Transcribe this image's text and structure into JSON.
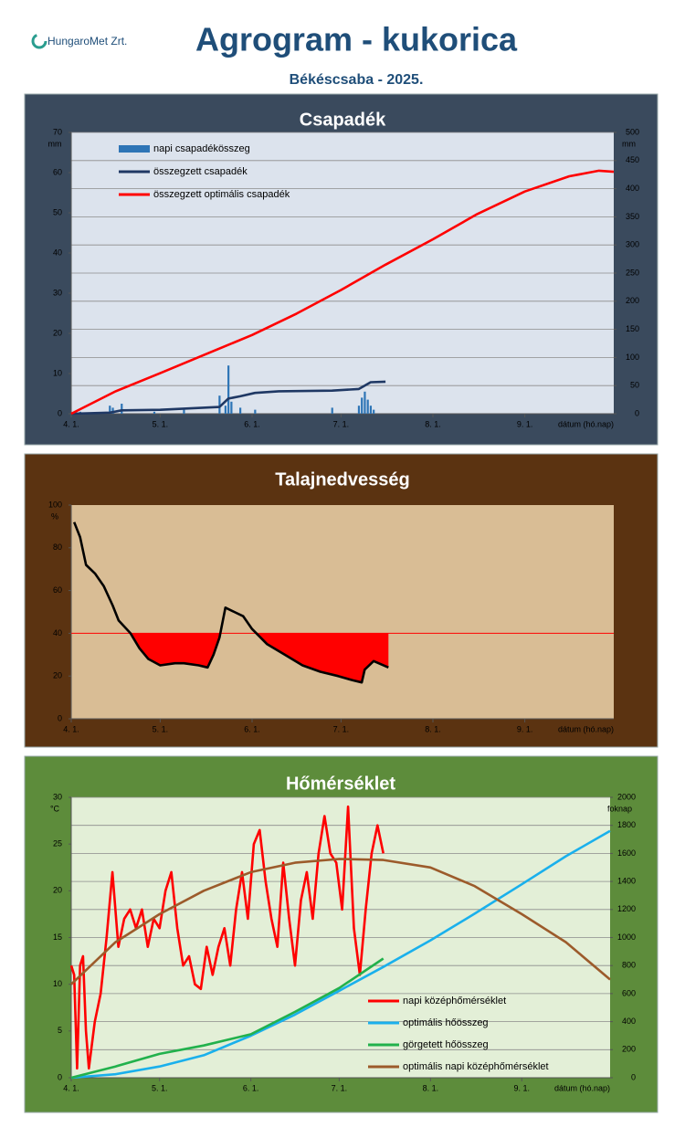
{
  "logo": "HungaroMet Zrt.",
  "title": "Agrogram - kukorica",
  "subtitle": "Békéscsaba - 2025.",
  "chart_data": [
    {
      "type": "combo",
      "title": "Csapadék",
      "xlabel": "dátum (hó.nap)",
      "ylabel": "mm",
      "y2label": "mm",
      "xlim": [
        0,
        183
      ],
      "xticks": [
        {
          "value": 0,
          "label": "4. 1."
        },
        {
          "value": 30,
          "label": "5. 1."
        },
        {
          "value": 61,
          "label": "6. 1."
        },
        {
          "value": 91,
          "label": "7. 1."
        },
        {
          "value": 122,
          "label": "8. 1."
        },
        {
          "value": 153,
          "label": "9. 1."
        }
      ],
      "ylim": [
        0,
        70
      ],
      "yticks": [
        0,
        10,
        20,
        30,
        40,
        50,
        60,
        70
      ],
      "y2lim": [
        0,
        500
      ],
      "y2ticks": [
        0,
        50,
        100,
        150,
        200,
        250,
        300,
        350,
        400,
        450,
        500
      ],
      "grid": "y2",
      "legend": "upper left",
      "background": "#dce3ed",
      "panel_color": "#3a4a5d",
      "series": [
        {
          "name": "napi csapadékösszeg",
          "type": "bar",
          "color": "#2e75b6",
          "x": [
            3,
            13,
            14,
            17,
            28,
            38,
            50,
            52,
            53,
            54,
            57,
            62,
            88,
            97,
            98,
            99,
            100,
            101,
            102
          ],
          "values": [
            0.5,
            2,
            1.5,
            2.5,
            0.5,
            1,
            4.5,
            2,
            12,
            3,
            1.5,
            1,
            1.5,
            2,
            4,
            5.5,
            3.5,
            2,
            1
          ]
        },
        {
          "name": "összegzett csapadék",
          "type": "line",
          "axis": "y2",
          "color": "#1f3864",
          "x": [
            0,
            13,
            17,
            30,
            50,
            53,
            57,
            62,
            70,
            88,
            97,
            99,
            101,
            106
          ],
          "values": [
            0,
            2,
            6,
            7,
            12,
            27,
            31,
            37,
            40,
            41,
            44,
            50,
            56,
            57
          ]
        },
        {
          "name": "összegzett optimális csapadék",
          "type": "line",
          "axis": "y2",
          "color": "#ff0000",
          "x": [
            0,
            15,
            30,
            45,
            61,
            76,
            91,
            106,
            122,
            137,
            153,
            168,
            178,
            183
          ],
          "values": [
            0,
            40,
            72,
            105,
            140,
            178,
            220,
            265,
            310,
            355,
            395,
            422,
            432,
            430
          ]
        }
      ]
    },
    {
      "type": "line",
      "title": "Talajnedvesség",
      "xlabel": "dátum (hó.nap)",
      "ylabel": "%",
      "xlim": [
        0,
        183
      ],
      "xticks": [
        {
          "value": 0,
          "label": "4. 1."
        },
        {
          "value": 30,
          "label": "5. 1."
        },
        {
          "value": 61,
          "label": "6. 1."
        },
        {
          "value": 91,
          "label": "7. 1."
        },
        {
          "value": 122,
          "label": "8. 1."
        },
        {
          "value": 153,
          "label": "9. 1."
        }
      ],
      "ylim": [
        0,
        100
      ],
      "yticks": [
        0,
        20,
        40,
        60,
        80,
        100
      ],
      "grid": false,
      "background": "#d9bd95",
      "panel_color": "#5b3311",
      "threshold": 40,
      "threshold_color": "#ff0000",
      "series": [
        {
          "name": null,
          "color": "#000000",
          "fill_below_threshold": "#ff0000",
          "x": [
            1,
            3,
            5,
            8,
            11,
            14,
            16,
            20,
            23,
            26,
            30,
            35,
            38,
            43,
            46,
            48,
            50,
            52,
            55,
            58,
            61,
            66,
            72,
            78,
            84,
            90,
            95,
            98,
            99,
            102,
            107
          ],
          "values": [
            92,
            85,
            72,
            68,
            62,
            53,
            46,
            40,
            33,
            28,
            25,
            26,
            26,
            25,
            24,
            30,
            38,
            52,
            50,
            48,
            42,
            35,
            30,
            25,
            22,
            20,
            18,
            17,
            23,
            27,
            24
          ]
        }
      ]
    },
    {
      "type": "line",
      "title": "Hőmérséklet",
      "xlabel": "dátum (hó.nap)",
      "ylabel": "°C",
      "y2label": "foknap",
      "xlim": [
        0,
        183
      ],
      "xticks": [
        {
          "value": 0,
          "label": "4. 1."
        },
        {
          "value": 30,
          "label": "5. 1."
        },
        {
          "value": 61,
          "label": "6. 1."
        },
        {
          "value": 91,
          "label": "7. 1."
        },
        {
          "value": 122,
          "label": "8. 1."
        },
        {
          "value": 153,
          "label": "9. 1."
        }
      ],
      "ylim": [
        0,
        30
      ],
      "yticks": [
        0,
        5,
        10,
        15,
        20,
        25,
        30
      ],
      "y2lim": [
        0,
        2000
      ],
      "y2ticks": [
        0,
        200,
        400,
        600,
        800,
        1000,
        1200,
        1400,
        1600,
        1800,
        2000
      ],
      "grid": "y2",
      "legend": "lower right",
      "background": "#e3efd7",
      "panel_color": "#5d8c3b",
      "series": [
        {
          "name": "napi középhőmérséklet",
          "color": "#ff0000",
          "x": [
            0,
            1,
            2,
            3,
            4,
            5,
            6,
            8,
            10,
            12,
            14,
            16,
            18,
            20,
            22,
            24,
            26,
            28,
            30,
            32,
            34,
            36,
            38,
            40,
            42,
            44,
            46,
            48,
            50,
            52,
            54,
            56,
            58,
            60,
            62,
            64,
            66,
            68,
            70,
            72,
            74,
            76,
            78,
            80,
            82,
            84,
            86,
            88,
            90,
            92,
            94,
            96,
            98,
            100,
            102,
            104,
            106
          ],
          "values": [
            12,
            11,
            1,
            12,
            13,
            5,
            1,
            6,
            9,
            15,
            22,
            14,
            17,
            18,
            16,
            18,
            14,
            17,
            16,
            20,
            22,
            16,
            12,
            13,
            10,
            9.5,
            14,
            11,
            14,
            16,
            12,
            18,
            22,
            17,
            25,
            26.5,
            21,
            17,
            14,
            23,
            17,
            12,
            19,
            22,
            17,
            24,
            28,
            24,
            23,
            18,
            29,
            16,
            11,
            18,
            24,
            27,
            24
          ]
        },
        {
          "name": "optimális hőösszeg",
          "axis": "y2",
          "color": "#1ab0ec",
          "x": [
            0,
            15,
            30,
            45,
            61,
            76,
            91,
            106,
            122,
            137,
            153,
            168,
            183
          ],
          "values": [
            0,
            25,
            80,
            160,
            300,
            450,
            620,
            790,
            980,
            1170,
            1380,
            1580,
            1760
          ]
        },
        {
          "name": "görgetett hőösszeg",
          "axis": "y2",
          "color": "#22b14c",
          "x": [
            0,
            15,
            30,
            45,
            61,
            76,
            91,
            106
          ],
          "values": [
            0,
            80,
            170,
            230,
            310,
            470,
            640,
            850
          ]
        },
        {
          "name": "optimális napi középhőmérséklet",
          "color": "#9c5b2b",
          "x": [
            0,
            15,
            30,
            45,
            61,
            76,
            91,
            106,
            122,
            137,
            153,
            168,
            183
          ],
          "values": [
            10,
            14.5,
            17.5,
            20,
            22,
            23,
            23.4,
            23.3,
            22.5,
            20.5,
            17.5,
            14.5,
            10.5
          ]
        }
      ]
    }
  ]
}
